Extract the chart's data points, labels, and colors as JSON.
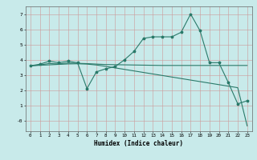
{
  "title": "",
  "xlabel": "Humidex (Indice chaleur)",
  "bg_color": "#c8eaea",
  "grid_color_minor": "#d4d4d4",
  "grid_color_major": "#b8b8b8",
  "line_color": "#2a7a6a",
  "xlim": [
    -0.5,
    23.5
  ],
  "ylim": [
    -0.7,
    7.5
  ],
  "xticks": [
    0,
    1,
    2,
    3,
    4,
    5,
    6,
    7,
    8,
    9,
    10,
    11,
    12,
    13,
    14,
    15,
    16,
    17,
    18,
    19,
    20,
    21,
    22,
    23
  ],
  "yticks": [
    0,
    1,
    2,
    3,
    4,
    5,
    6,
    7
  ],
  "ytick_labels": [
    "-0",
    "1",
    "2",
    "3",
    "4",
    "5",
    "6",
    "7"
  ],
  "line1_x": [
    0,
    1,
    2,
    3,
    4,
    5,
    6,
    7,
    8,
    9,
    10,
    11,
    12,
    13,
    14,
    15,
    16,
    17,
    18,
    19,
    20,
    21,
    22,
    23
  ],
  "line1_y": [
    3.6,
    3.7,
    3.9,
    3.8,
    3.9,
    3.8,
    2.1,
    3.2,
    3.4,
    3.55,
    4.0,
    4.55,
    5.4,
    5.5,
    5.5,
    5.5,
    5.8,
    7.0,
    5.9,
    3.8,
    3.8,
    2.5,
    1.1,
    1.3
  ],
  "line2_x": [
    0,
    1,
    2,
    3,
    4,
    5,
    6,
    7,
    8,
    9,
    10,
    11,
    12,
    13,
    14,
    15,
    16,
    17,
    18,
    19,
    20,
    21,
    22,
    23
  ],
  "line2_y": [
    3.6,
    3.65,
    3.75,
    3.72,
    3.78,
    3.76,
    3.74,
    3.71,
    3.68,
    3.67,
    3.66,
    3.65,
    3.64,
    3.63,
    3.62,
    3.62,
    3.62,
    3.62,
    3.62,
    3.62,
    3.62,
    3.62,
    3.62,
    3.62
  ],
  "line3_x": [
    0,
    1,
    2,
    3,
    4,
    5,
    6,
    7,
    8,
    9,
    10,
    11,
    12,
    13,
    14,
    15,
    16,
    17,
    18,
    19,
    20,
    21,
    22,
    23
  ],
  "line3_y": [
    3.6,
    3.63,
    3.66,
    3.69,
    3.72,
    3.73,
    3.71,
    3.65,
    3.56,
    3.46,
    3.36,
    3.26,
    3.16,
    3.06,
    2.96,
    2.86,
    2.76,
    2.66,
    2.56,
    2.46,
    2.36,
    2.26,
    2.16,
    -0.35
  ]
}
